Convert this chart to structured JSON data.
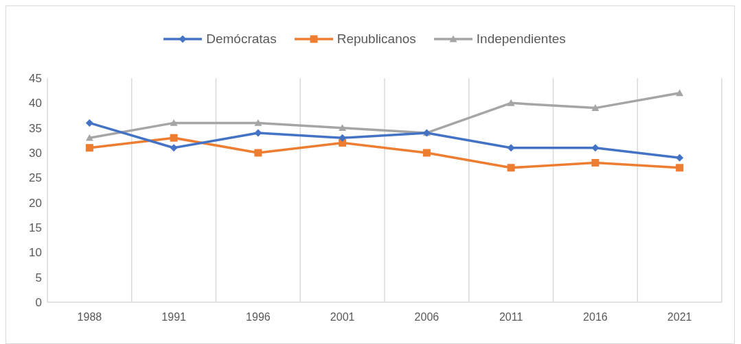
{
  "chart_data": {
    "type": "line",
    "categories": [
      "1988",
      "1991",
      "1996",
      "2001",
      "2006",
      "2011",
      "2016",
      "2021"
    ],
    "series": [
      {
        "name": "Demócratas",
        "color": "#4472c4",
        "marker": "diamond",
        "values": [
          36,
          31,
          34,
          33,
          34,
          31,
          31,
          29
        ]
      },
      {
        "name": "Republicanos",
        "color": "#ed7d31",
        "marker": "square",
        "values": [
          31,
          33,
          30,
          32,
          30,
          27,
          28,
          27
        ]
      },
      {
        "name": "Independientes",
        "color": "#a5a5a5",
        "marker": "triangle",
        "values": [
          33,
          36,
          36,
          35,
          34,
          40,
          39,
          42
        ]
      }
    ],
    "ylim": [
      0,
      45
    ],
    "yticks": [
      0,
      5,
      10,
      15,
      20,
      25,
      30,
      35,
      40,
      45
    ],
    "grid": "x",
    "legend": "top",
    "line_style": "solid"
  }
}
